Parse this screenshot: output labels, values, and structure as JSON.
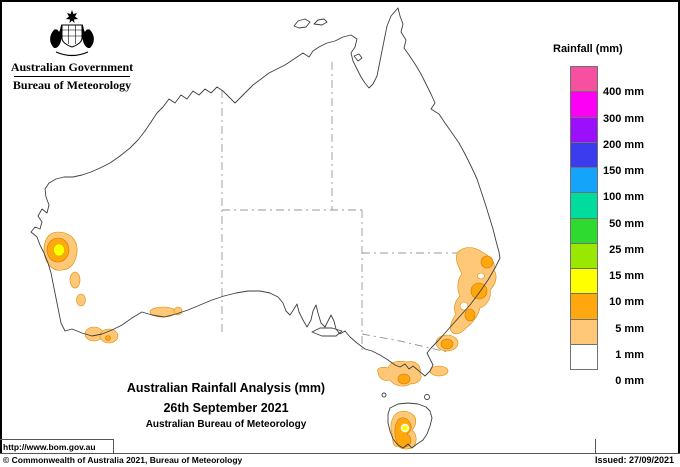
{
  "header": {
    "government_label": "Australian Government",
    "bureau_label": "Bureau of Meteorology"
  },
  "legend": {
    "title": "Rainfall (mm)",
    "entries": [
      {
        "color": "#F850A0",
        "label": "400 mm"
      },
      {
        "color": "#FB00F5",
        "label": "300 mm"
      },
      {
        "color": "#9A10FA",
        "label": "200 mm"
      },
      {
        "color": "#3C3CEF",
        "label": "150 mm"
      },
      {
        "color": "#14A5FA",
        "label": "100 mm"
      },
      {
        "color": "#00DC9E",
        "label": "50 mm"
      },
      {
        "color": "#2EDA30",
        "label": "25 mm"
      },
      {
        "color": "#9AE800",
        "label": "15 mm"
      },
      {
        "color": "#FFFF00",
        "label": "10 mm"
      },
      {
        "color": "#FFA70F",
        "label": "5 mm"
      },
      {
        "color": "#FFC878",
        "label": "1 mm"
      },
      {
        "color": "#FFFFFF",
        "label": "0 mm"
      }
    ]
  },
  "map_title": {
    "line1": "Australian Rainfall Analysis (mm)",
    "line2": "26th September 2021",
    "line3": "Australian Bureau of Meteorology"
  },
  "url_label": "http://www.bom.gov.au",
  "footer": {
    "copyright": "© Commonwealth of Australia 2021, Bureau of Meteorology",
    "issued": "Issued: 27/09/2021"
  },
  "map_colors": {
    "rain_light": "#FFC878",
    "rain_moderate": "#FFA70F",
    "rain_heavy": "#FFFF00",
    "coastline": "#3f3f3f",
    "state_border": "#979797"
  }
}
